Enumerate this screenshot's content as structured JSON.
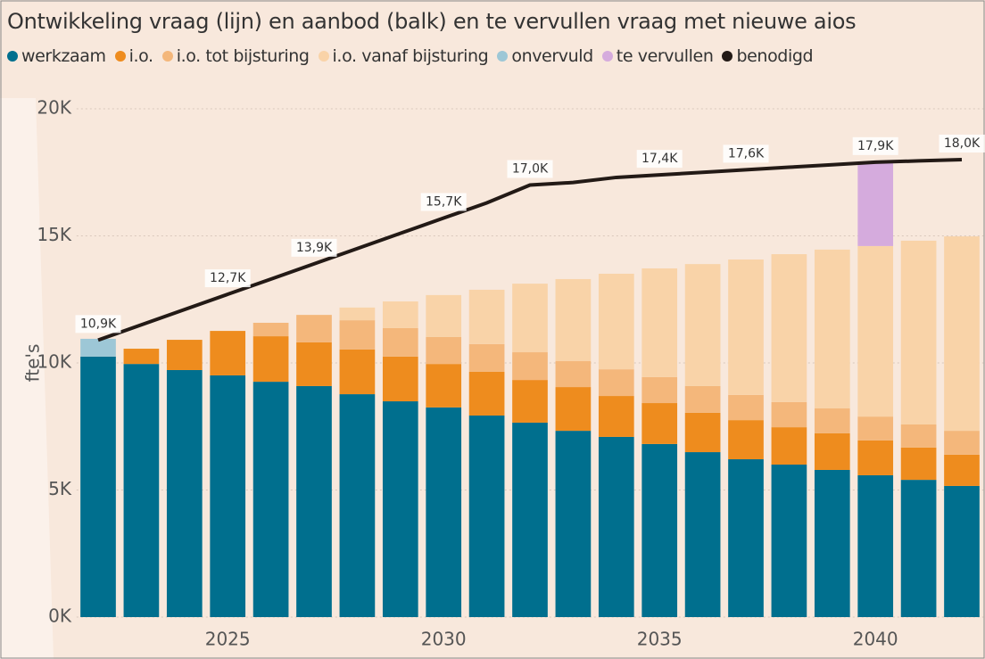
{
  "chart_data": {
    "type": "bar",
    "title": "Ontwikkeling vraag (lijn) en aanbod (balk) en te vervullen vraag met nieuwe aios",
    "ylabel": "fte's",
    "x": [
      2022,
      2023,
      2024,
      2025,
      2026,
      2027,
      2028,
      2029,
      2030,
      2031,
      2032,
      2033,
      2034,
      2035,
      2036,
      2037,
      2038,
      2039,
      2040,
      2041,
      2042
    ],
    "xlim": [
      2021.5,
      2042.5
    ],
    "xticks": [
      2025,
      2030,
      2035,
      2040
    ],
    "ylim": [
      0,
      20000
    ],
    "yticks": [
      {
        "value": 0,
        "label": "0K"
      },
      {
        "value": 5000,
        "label": "5K"
      },
      {
        "value": 10000,
        "label": "10K"
      },
      {
        "value": 15000,
        "label": "15K"
      },
      {
        "value": 20000,
        "label": "20K"
      }
    ],
    "grid": true,
    "series": [
      {
        "name": "werkzaam",
        "color": "#006f8e",
        "values": [
          10250,
          9960,
          9720,
          9510,
          9260,
          9090,
          8770,
          8490,
          8250,
          7930,
          7650,
          7330,
          7090,
          6810,
          6490,
          6210,
          6000,
          5790,
          5580,
          5400,
          5160
        ]
      },
      {
        "name": "i.o.",
        "color": "#ee8c1e",
        "values": [
          null,
          600,
          1190,
          1750,
          1790,
          1720,
          1760,
          1760,
          1710,
          1720,
          1680,
          1720,
          1610,
          1610,
          1550,
          1540,
          1470,
          1440,
          1370,
          1270,
          1230
        ]
      },
      {
        "name": "i.o. tot bijsturing",
        "color": "#f4b77b",
        "values": [
          null,
          null,
          null,
          null,
          530,
          1080,
          1150,
          1120,
          1060,
          1090,
          1090,
          1020,
          1050,
          1020,
          1050,
          990,
          990,
          980,
          940,
          910,
          940
        ]
      },
      {
        "name": "i.o. vanaf bijsturing",
        "color": "#f9d3a8",
        "values": [
          null,
          null,
          null,
          null,
          null,
          null,
          500,
          1050,
          1650,
          2140,
          2700,
          3230,
          3760,
          4280,
          4800,
          5330,
          5820,
          6250,
          6710,
          7230,
          7650
        ]
      },
      {
        "name": "onvervuld",
        "color": "#9dc7d6",
        "values": [
          700,
          null,
          null,
          null,
          null,
          null,
          null,
          null,
          null,
          null,
          null,
          null,
          null,
          null,
          null,
          null,
          null,
          null,
          null,
          null,
          null
        ]
      },
      {
        "name": "te vervullen",
        "color": "#d5abdd",
        "values": [
          null,
          null,
          null,
          null,
          null,
          null,
          null,
          null,
          null,
          null,
          null,
          null,
          null,
          null,
          null,
          null,
          null,
          null,
          3300,
          null,
          null
        ]
      },
      {
        "name": "benodigd",
        "color": "#231a16",
        "type": "line",
        "values": [
          10900,
          11500,
          12100,
          12700,
          13300,
          13900,
          14500,
          15100,
          15700,
          16300,
          17000,
          17100,
          17300,
          17400,
          17500,
          17600,
          17700,
          17800,
          17900,
          17950,
          18000
        ],
        "value_labels": [
          "10,9K",
          null,
          null,
          "12,7K",
          null,
          "13,9K",
          null,
          null,
          "15,7K",
          null,
          "17,0K",
          null,
          null,
          "17,4K",
          null,
          "17,6K",
          null,
          null,
          "17,9K",
          null,
          "18,0K"
        ]
      }
    ]
  }
}
